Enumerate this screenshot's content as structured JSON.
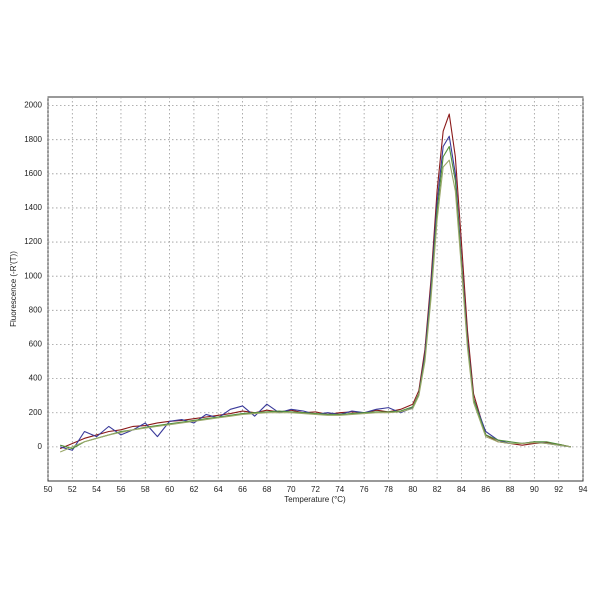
{
  "chart_data": {
    "type": "line",
    "x_label": "Temperature (°C)",
    "y_label": "Fluorescence (-R'(T))",
    "x": [
      51,
      52,
      53,
      54,
      55,
      56,
      57,
      58,
      59,
      60,
      61,
      62,
      63,
      64,
      65,
      66,
      67,
      68,
      69,
      70,
      71,
      72,
      73,
      74,
      75,
      76,
      77,
      78,
      79,
      80,
      80.5,
      81,
      81.5,
      82,
      82.5,
      83,
      83.5,
      84,
      84.5,
      85,
      86,
      87,
      88,
      89,
      90,
      91,
      92,
      93
    ],
    "series": [
      {
        "color": "#8b1a1a",
        "values": [
          -10,
          20,
          50,
          70,
          90,
          100,
          120,
          125,
          140,
          150,
          155,
          165,
          175,
          185,
          195,
          210,
          200,
          215,
          205,
          215,
          200,
          205,
          190,
          200,
          205,
          200,
          215,
          205,
          220,
          250,
          330,
          570,
          980,
          1500,
          1850,
          1950,
          1700,
          1200,
          680,
          310,
          70,
          30,
          20,
          10,
          20,
          25,
          15,
          0
        ]
      },
      {
        "color": "#3a3a9a",
        "values": [
          0,
          -20,
          90,
          60,
          120,
          70,
          100,
          140,
          60,
          150,
          160,
          140,
          190,
          170,
          220,
          240,
          180,
          250,
          200,
          220,
          210,
          190,
          200,
          190,
          210,
          200,
          220,
          230,
          200,
          230,
          310,
          540,
          940,
          1430,
          1760,
          1820,
          1600,
          1100,
          620,
          280,
          90,
          40,
          20,
          20,
          30,
          20,
          10,
          0
        ]
      },
      {
        "color": "#4f8f3a",
        "values": [
          10,
          -10,
          30,
          50,
          70,
          90,
          100,
          115,
          125,
          135,
          145,
          155,
          165,
          175,
          185,
          195,
          200,
          205,
          210,
          205,
          200,
          195,
          190,
          190,
          195,
          200,
          205,
          205,
          210,
          235,
          310,
          520,
          900,
          1380,
          1700,
          1760,
          1560,
          1080,
          600,
          280,
          70,
          40,
          30,
          20,
          30,
          30,
          15,
          0
        ]
      },
      {
        "color": "#9aa86a",
        "values": [
          -30,
          0,
          30,
          50,
          70,
          85,
          100,
          110,
          120,
          130,
          140,
          150,
          160,
          170,
          180,
          190,
          195,
          200,
          200,
          200,
          195,
          190,
          185,
          185,
          190,
          195,
          200,
          200,
          205,
          225,
          300,
          500,
          870,
          1330,
          1640,
          1680,
          1500,
          1050,
          580,
          260,
          60,
          30,
          20,
          20,
          25,
          20,
          10,
          0
        ]
      }
    ],
    "xlim": [
      50,
      94
    ],
    "xticks": [
      50,
      52,
      54,
      56,
      58,
      60,
      62,
      64,
      66,
      68,
      70,
      72,
      74,
      76,
      78,
      80,
      82,
      84,
      86,
      88,
      90,
      92,
      94
    ],
    "ylim": [
      -200,
      2050
    ],
    "yticks": [
      0,
      200,
      400,
      600,
      800,
      1000,
      1200,
      1400,
      1600,
      1800,
      2000
    ],
    "grid": true
  }
}
